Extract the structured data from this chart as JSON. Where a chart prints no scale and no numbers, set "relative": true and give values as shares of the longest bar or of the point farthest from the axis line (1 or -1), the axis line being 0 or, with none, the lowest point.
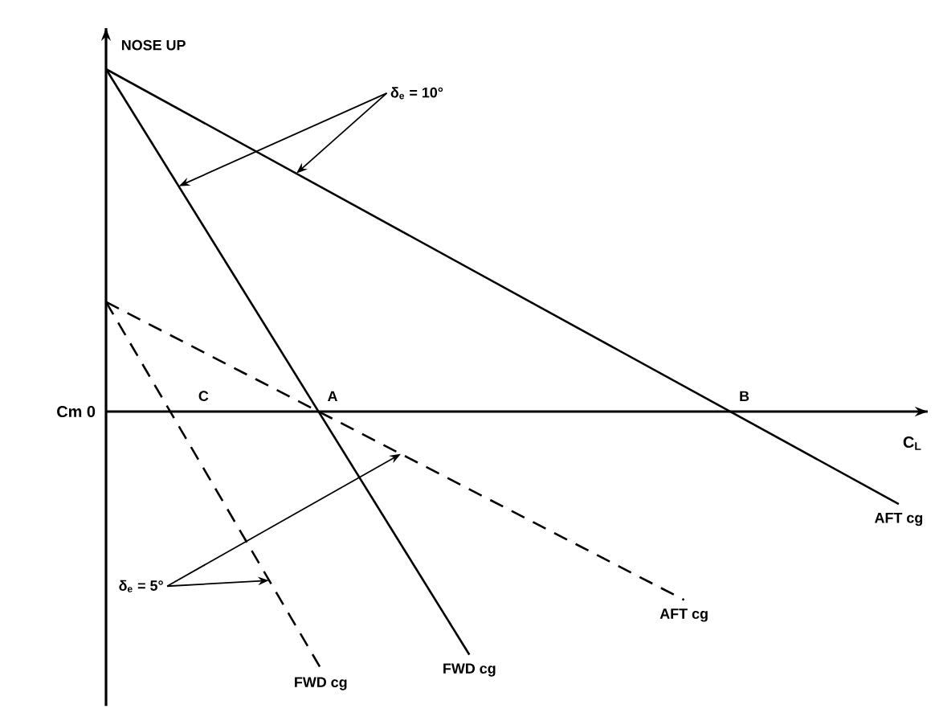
{
  "chart_data": {
    "type": "line",
    "relative": true,
    "ylabel": "Cm 0",
    "xlabel": "C$_{L}$",
    "categories": [
      null,
      null,
      null,
      null,
      null,
      null,
      null,
      null,
      null,
      null,
      null,
      null,
      null,
      null,
      null,
      null,
      null,
      null,
      null,
      null,
      null,
      null,
      null,
      null,
      null,
      null,
      null,
      null,
      null,
      null,
      null,
      null,
      null,
      null,
      null,
      null,
      null,
      null,
      null,
      null,
      null,
      null,
      null,
      null,
      null,
      null,
      null,
      null,
      null
    ],
    "series": [
      {
        "name": "FWD cg",
        "color": "#000000",
        "line_style": "solid",
        "values": [
          1,
          null,
          null,
          null,
          null,
          null,
          null,
          null,
          null,
          null,
          null,
          null,
          null,
          null,
          null,
          null,
          null,
          null,
          null,
          null,
          null,
          null,
          -0.71,
          null,
          null,
          null,
          null,
          null,
          null,
          null,
          null,
          null,
          null,
          null,
          null,
          null,
          null,
          null,
          null,
          null,
          null,
          null,
          null,
          null,
          null,
          null,
          null,
          null,
          null
        ]
      },
      {
        "name": "AFT cg",
        "color": "#000000",
        "line_style": "solid",
        "values": [
          1,
          null,
          null,
          null,
          null,
          null,
          null,
          null,
          null,
          null,
          null,
          null,
          null,
          null,
          null,
          null,
          null,
          null,
          null,
          null,
          null,
          null,
          null,
          null,
          null,
          null,
          null,
          null,
          null,
          null,
          null,
          null,
          null,
          null,
          null,
          null,
          null,
          null,
          null,
          null,
          null,
          null,
          null,
          null,
          null,
          null,
          null,
          null,
          -0.27
        ]
      },
      {
        "name": "FWD cg",
        "color": "#000000",
        "line_style": "dashed",
        "values": [
          0.32,
          null,
          null,
          null,
          null,
          null,
          null,
          null,
          null,
          null,
          null,
          null,
          null,
          -0.75,
          null,
          null,
          null,
          null,
          null,
          null,
          null,
          null,
          null,
          null,
          null,
          null,
          null,
          null,
          null,
          null,
          null,
          null,
          null,
          null,
          null,
          null,
          null,
          null,
          null,
          null,
          null,
          null,
          null,
          null,
          null,
          null,
          null,
          null,
          null
        ]
      },
      {
        "name": "AFT cg",
        "color": "#000000",
        "line_style": "dashed",
        "values": [
          0.32,
          null,
          null,
          null,
          null,
          null,
          null,
          null,
          null,
          null,
          null,
          null,
          null,
          null,
          null,
          null,
          null,
          null,
          null,
          null,
          null,
          null,
          null,
          null,
          null,
          null,
          null,
          null,
          null,
          null,
          null,
          null,
          null,
          null,
          null,
          -0.55,
          null,
          null,
          null,
          null,
          null,
          null,
          null,
          null,
          null,
          null,
          null,
          null,
          null
        ]
      }
    ],
    "annotations": [
      "NOSE UP",
      "δ$_{e}$ = 10°",
      "δ$_{e}$ = 5°",
      {
        "text": "A",
        "y": 0
      },
      {
        "text": "B",
        "y": 0
      },
      "C"
    ]
  }
}
